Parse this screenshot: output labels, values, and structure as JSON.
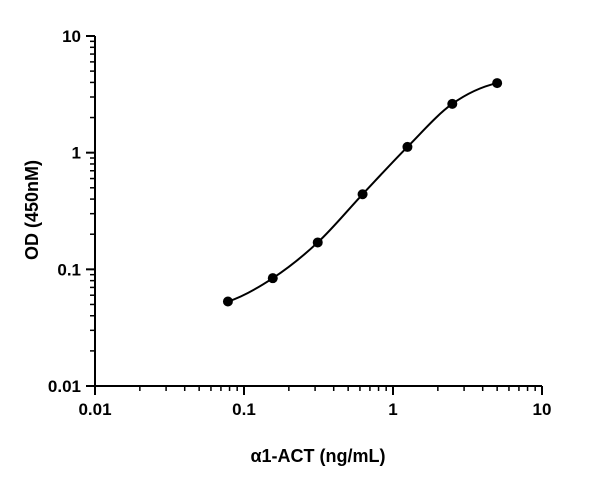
{
  "chart_data": {
    "type": "scatter",
    "xscale": "log",
    "yscale": "log",
    "xlim": [
      0.01,
      10
    ],
    "ylim": [
      0.01,
      10
    ],
    "xlabel": "α1-ACT (ng/mL)",
    "ylabel": "OD (450nM)",
    "x_ticks": [
      {
        "value": 0.01,
        "label": "0.01"
      },
      {
        "value": 0.1,
        "label": "0.1"
      },
      {
        "value": 1,
        "label": "1"
      },
      {
        "value": 10,
        "label": "10"
      }
    ],
    "y_ticks": [
      {
        "value": 0.01,
        "label": "0.01"
      },
      {
        "value": 0.1,
        "label": "0.1"
      },
      {
        "value": 1,
        "label": "1"
      },
      {
        "value": 10,
        "label": "10"
      }
    ],
    "points": [
      {
        "x": 0.078,
        "y": 0.053
      },
      {
        "x": 0.156,
        "y": 0.084
      },
      {
        "x": 0.3125,
        "y": 0.17
      },
      {
        "x": 0.625,
        "y": 0.44
      },
      {
        "x": 1.25,
        "y": 1.12
      },
      {
        "x": 2.5,
        "y": 2.62
      },
      {
        "x": 5,
        "y": 3.95
      }
    ],
    "fit_curve": "smooth",
    "grid": false,
    "legend": "none",
    "colors": {
      "axis": "#000000",
      "marker": "#000000",
      "curve": "#000000"
    }
  }
}
